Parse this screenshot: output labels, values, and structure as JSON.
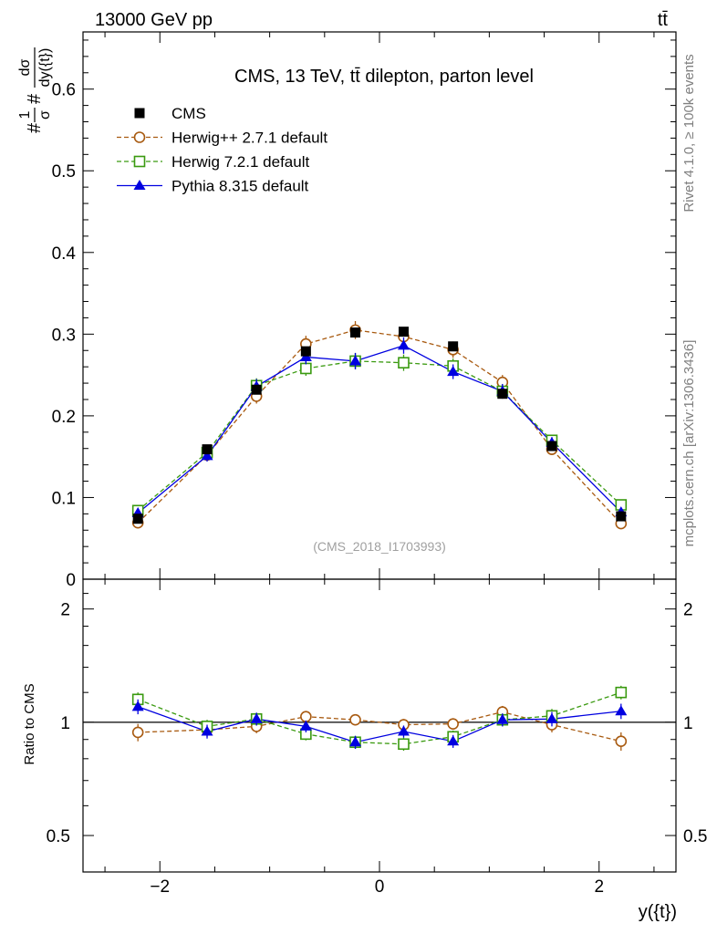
{
  "header": {
    "energy_label": "13000 GeV pp",
    "process_label": "tt̄"
  },
  "side_labels": {
    "rivet": "Rivet 4.1.0, ≥ 100k events",
    "mcplots": "mcplots.cern.ch [arXiv:1306.3436]"
  },
  "colors": {
    "cms": "#000000",
    "herwigpp": "#a85a10",
    "herwig7": "#3a9a10",
    "pythia": "#0000e0"
  },
  "chart_data": [
    {
      "type": "scatter",
      "title": "CMS, 13 TeV, tt̄ dilepton, parton level",
      "watermark": "(CMS_2018_I1703993)",
      "ylabel": "#1/σ#dσ/dy({t})",
      "ylabel_parts": {
        "prefix": "#",
        "num1": "1",
        "den1": "σ",
        "mid": "#",
        "num2": "dσ",
        "den2": "dy({t})"
      },
      "xlim": [
        -2.7,
        2.7
      ],
      "ylim": [
        0,
        0.67
      ],
      "yticks": [
        0,
        0.1,
        0.2,
        0.3,
        0.4,
        0.5,
        0.6
      ],
      "ytick_labels": [
        "0",
        "0.1",
        "0.2",
        "0.3",
        "0.4",
        "0.5",
        "0.6"
      ],
      "legend_position": "top-left",
      "x": [
        -2.2,
        -1.57,
        -1.12,
        -0.67,
        -0.22,
        0.22,
        0.67,
        1.12,
        1.57,
        2.2
      ],
      "series": [
        {
          "name": "CMS",
          "style": "square-filled",
          "line": "none",
          "values": [
            0.074,
            0.159,
            0.232,
            0.279,
            0.302,
            0.303,
            0.285,
            0.227,
            0.163,
            0.077
          ],
          "errors": [
            0.003,
            0.004,
            0.005,
            0.005,
            0.005,
            0.005,
            0.005,
            0.004,
            0.004,
            0.003
          ]
        },
        {
          "name": "Herwig++ 2.7.1 default",
          "style": "circle-open",
          "line": "dashed",
          "values": [
            0.069,
            0.152,
            0.224,
            0.288,
            0.305,
            0.297,
            0.281,
            0.241,
            0.159,
            0.068
          ],
          "errors": [
            0.004,
            0.007,
            0.009,
            0.01,
            0.011,
            0.011,
            0.01,
            0.009,
            0.007,
            0.004
          ]
        },
        {
          "name": "Herwig 7.2.1 default",
          "style": "square-open",
          "line": "dashed",
          "values": [
            0.084,
            0.155,
            0.237,
            0.258,
            0.267,
            0.265,
            0.261,
            0.23,
            0.17,
            0.091
          ],
          "errors": [
            0.004,
            0.007,
            0.009,
            0.009,
            0.01,
            0.01,
            0.009,
            0.009,
            0.007,
            0.004
          ]
        },
        {
          "name": "Pythia 8.315 default",
          "style": "triangle-filled",
          "line": "solid",
          "values": [
            0.081,
            0.151,
            0.236,
            0.272,
            0.267,
            0.286,
            0.254,
            0.23,
            0.167,
            0.082
          ],
          "errors": [
            0.004,
            0.007,
            0.009,
            0.009,
            0.01,
            0.01,
            0.009,
            0.009,
            0.007,
            0.004
          ]
        }
      ]
    },
    {
      "type": "scatter",
      "title": "",
      "ylabel": "Ratio to CMS",
      "xlabel": "y({t})",
      "ylim_log": [
        0.4,
        2.4
      ],
      "yticks": [
        0.5,
        1,
        2
      ],
      "ytick_labels": [
        "0.5",
        "1",
        "2"
      ],
      "right_tick_labels": [
        "0.5",
        "1",
        "2"
      ],
      "xticks": [
        -2,
        0,
        2
      ],
      "xtick_labels": [
        "−2",
        "0",
        "2"
      ],
      "reference_line": 1,
      "x": [
        -2.2,
        -1.57,
        -1.12,
        -0.67,
        -0.22,
        0.22,
        0.67,
        1.12,
        1.57,
        2.2
      ],
      "series": [
        {
          "name": "Herwig++ 2.7.1 default",
          "values": [
            0.94,
            0.955,
            0.975,
            1.035,
            1.015,
            0.985,
            0.99,
            1.065,
            0.985,
            0.89
          ],
          "errors": [
            0.05,
            0.04,
            0.04,
            0.035,
            0.035,
            0.035,
            0.035,
            0.04,
            0.045,
            0.05
          ]
        },
        {
          "name": "Herwig 7.2.1 default",
          "values": [
            1.15,
            0.975,
            1.02,
            0.93,
            0.885,
            0.875,
            0.915,
            1.015,
            1.04,
            1.2
          ],
          "errors": [
            0.05,
            0.04,
            0.04,
            0.035,
            0.035,
            0.035,
            0.035,
            0.04,
            0.045,
            0.05
          ]
        },
        {
          "name": "Pythia 8.315 default",
          "values": [
            1.1,
            0.945,
            1.02,
            0.975,
            0.885,
            0.945,
            0.89,
            1.015,
            1.02,
            1.07
          ],
          "errors": [
            0.05,
            0.04,
            0.04,
            0.035,
            0.035,
            0.035,
            0.035,
            0.04,
            0.045,
            0.05
          ]
        }
      ]
    }
  ]
}
